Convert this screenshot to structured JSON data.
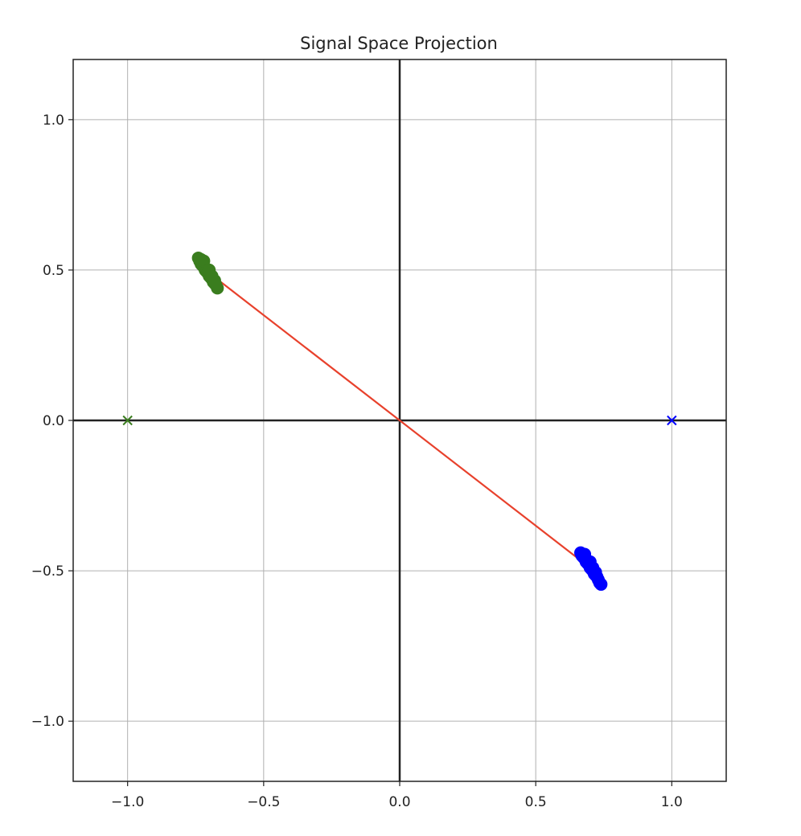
{
  "chart_data": {
    "type": "scatter",
    "title": "Signal Space Projection",
    "xlabel": "",
    "ylabel": "",
    "xlim": [
      -1.2,
      1.2
    ],
    "ylim": [
      -1.2,
      1.2
    ],
    "grid": true,
    "xticks": [
      -1.0,
      -0.5,
      0.0,
      0.5,
      1.0
    ],
    "yticks": [
      -1.0,
      -0.5,
      0.0,
      0.5,
      1.0
    ],
    "xtick_labels": [
      "−1.0",
      "−0.5",
      "0.0",
      "0.5",
      "1.0"
    ],
    "ytick_labels": [
      "−1.0",
      "−0.5",
      "0.0",
      "0.5",
      "1.0"
    ],
    "axes_lines": {
      "x": 0,
      "y": 0,
      "color": "#222222"
    },
    "series": [
      {
        "marker": "o",
        "color": "#3a7d1e",
        "points": [
          [
            -0.74,
            0.54
          ],
          [
            -0.735,
            0.53
          ],
          [
            -0.73,
            0.52
          ],
          [
            -0.725,
            0.515
          ],
          [
            -0.72,
            0.51
          ],
          [
            -0.715,
            0.5
          ],
          [
            -0.71,
            0.495
          ],
          [
            -0.705,
            0.49
          ],
          [
            -0.7,
            0.48
          ],
          [
            -0.695,
            0.475
          ],
          [
            -0.69,
            0.47
          ],
          [
            -0.685,
            0.46
          ],
          [
            -0.68,
            0.455
          ],
          [
            -0.675,
            0.45
          ],
          [
            -0.67,
            0.44
          ],
          [
            -0.72,
            0.53
          ],
          [
            -0.7,
            0.5
          ],
          [
            -0.69,
            0.48
          ],
          [
            -0.68,
            0.465
          ],
          [
            -0.73,
            0.535
          ]
        ]
      },
      {
        "marker": "o",
        "color": "#0000ff",
        "points": [
          [
            0.665,
            -0.44
          ],
          [
            0.67,
            -0.45
          ],
          [
            0.675,
            -0.455
          ],
          [
            0.68,
            -0.46
          ],
          [
            0.685,
            -0.47
          ],
          [
            0.69,
            -0.475
          ],
          [
            0.695,
            -0.48
          ],
          [
            0.7,
            -0.49
          ],
          [
            0.705,
            -0.495
          ],
          [
            0.71,
            -0.5
          ],
          [
            0.715,
            -0.51
          ],
          [
            0.72,
            -0.515
          ],
          [
            0.725,
            -0.52
          ],
          [
            0.73,
            -0.53
          ],
          [
            0.735,
            -0.54
          ],
          [
            0.68,
            -0.445
          ],
          [
            0.7,
            -0.47
          ],
          [
            0.71,
            -0.49
          ],
          [
            0.72,
            -0.505
          ],
          [
            0.74,
            -0.545
          ]
        ]
      },
      {
        "marker": "x",
        "color": "#3a7d1e",
        "points": [
          [
            -1.0,
            0.0
          ]
        ]
      },
      {
        "marker": "x",
        "color": "#0000ff",
        "points": [
          [
            1.0,
            0.0
          ]
        ]
      }
    ],
    "lines": [
      {
        "color": "#e8412c",
        "points": [
          [
            -0.7,
            0.49
          ],
          [
            0.0,
            0.0
          ],
          [
            0.7,
            -0.49
          ]
        ]
      }
    ]
  }
}
